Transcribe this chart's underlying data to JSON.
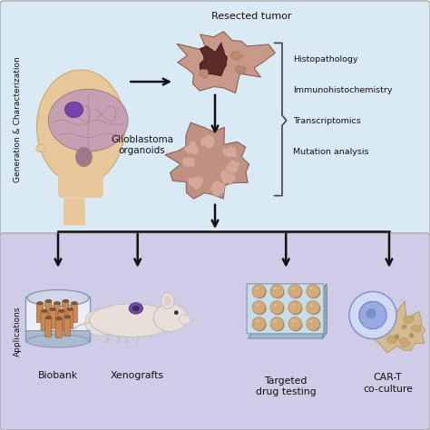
{
  "top_bg": "#daeaf5",
  "bottom_bg": "#d0cce8",
  "border_color": "#888888",
  "arrow_color": "#111111",
  "text_color": "#111111",
  "top_label": "Generation & Characterization",
  "bottom_label": "Applications",
  "resected_tumor_label": "Resected tumor",
  "organoid_label": "Glioblastoma\norganoids",
  "characterization_items": [
    "Histopathology",
    "Immunohistochemistry",
    "Transcriptomics",
    "Mutation analysis"
  ],
  "application_labels": [
    "Biobank",
    "Xenografts",
    "Targeted\ndrug testing",
    "CAR-T\nco-culture"
  ],
  "skin_color": "#e8c89a",
  "brain_color": "#c4a0b0",
  "brain_dark": "#a07888",
  "tumor_purple": "#7744aa",
  "tumor_outer": "#c89888",
  "tumor_dark": "#3a1a1a",
  "organoid_outer": "#c09080",
  "organoid_inner": "#d4a898",
  "mouse_body": "#e8e0d8",
  "mouse_ear_inner": "#e8c8c8",
  "plate_tray": "#c8dce8",
  "plate_well": "#d4aa78",
  "plate_rim": "#a09070",
  "cell_outer": "#b8c8e8",
  "cell_inner": "#8898cc",
  "tumor_mass": "#d4b888",
  "vial_body": "#c88858",
  "vial_cap": "#885533",
  "container_body": "#e8eaf0",
  "container_band": "#8898b8",
  "fig_width": 4.74,
  "fig_height": 4.74,
  "dpi": 100
}
